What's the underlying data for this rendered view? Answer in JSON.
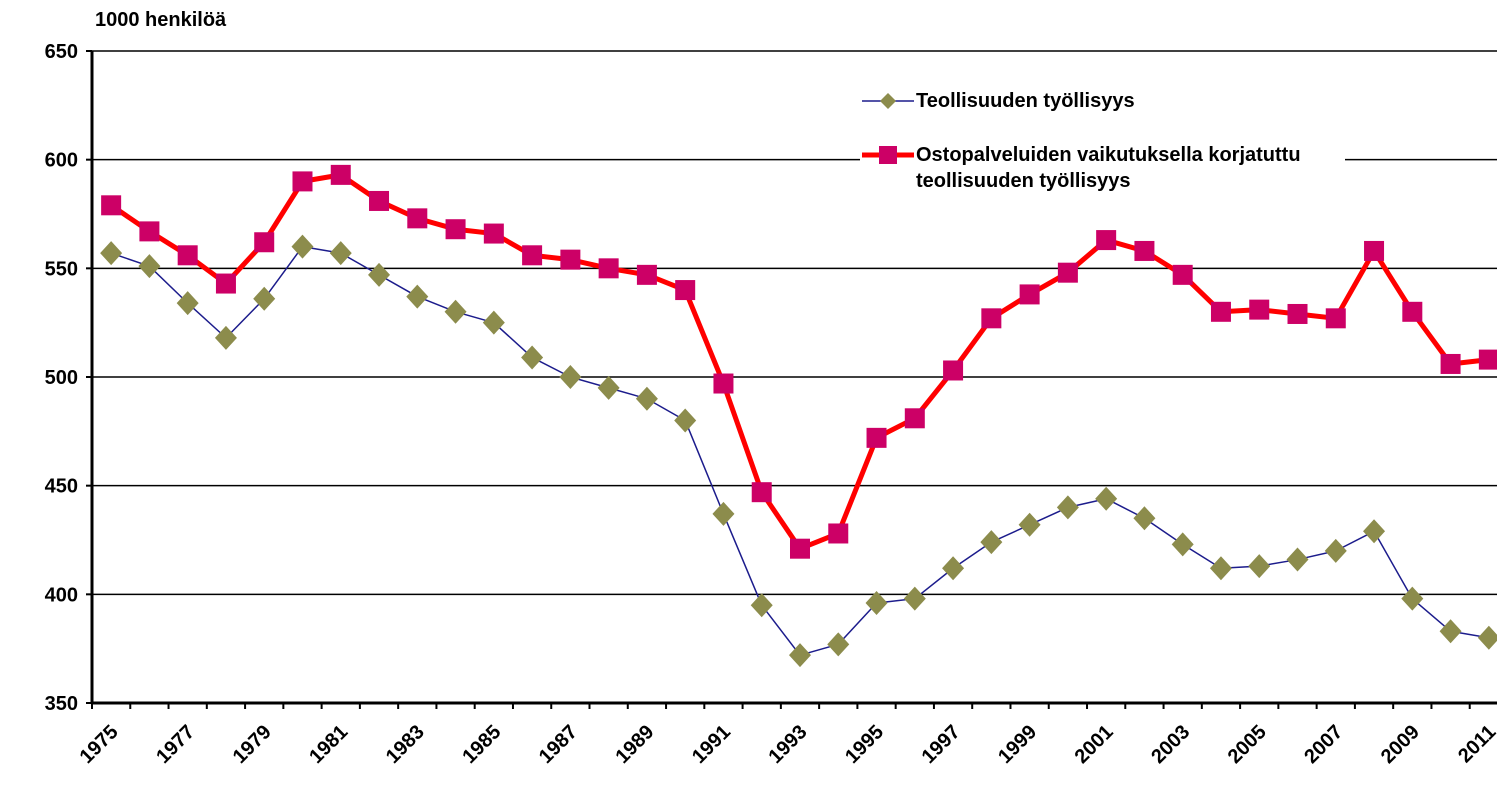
{
  "chart_data": {
    "type": "line",
    "y_label": "1000 henkilöä",
    "categories": [
      "1975",
      null,
      "1977",
      null,
      "1979",
      null,
      "1981",
      null,
      "1983",
      null,
      "1985",
      null,
      "1987",
      null,
      "1989",
      null,
      "1991",
      null,
      "1993",
      null,
      "1995",
      null,
      "1997",
      null,
      "1999",
      null,
      "2001",
      null,
      "2003",
      null,
      "2005",
      null,
      "2007",
      null,
      "2009",
      null,
      "2011"
    ],
    "series": [
      {
        "name": "Teollisuuden työllisyys",
        "color": "#1c1c8c",
        "marker_color": "#8c8c4c",
        "marker": "diamond",
        "values": [
          557,
          551,
          534,
          518,
          536,
          560,
          557,
          547,
          537,
          530,
          525,
          509,
          500,
          495,
          490,
          480,
          437,
          395,
          372,
          377,
          396,
          398,
          412,
          424,
          432,
          440,
          444,
          435,
          423,
          412,
          413,
          416,
          420,
          429,
          398,
          383,
          380
        ]
      },
      {
        "name": "Ostopalveluiden vaikutuksella korjatuttu teollisuuden työllisyys",
        "color": "#ff0000",
        "marker_color": "#cc0066",
        "marker": "square",
        "values": [
          579,
          567,
          556,
          543,
          562,
          590,
          593,
          581,
          573,
          568,
          566,
          556,
          554,
          550,
          547,
          540,
          497,
          447,
          421,
          428,
          472,
          481,
          503,
          527,
          538,
          548,
          563,
          558,
          547,
          530,
          531,
          529,
          527,
          558,
          530,
          506,
          508
        ]
      }
    ],
    "ylim": [
      350,
      650
    ],
    "yticks": [
      350,
      400,
      450,
      500,
      550,
      600,
      650
    ],
    "grid": true
  }
}
